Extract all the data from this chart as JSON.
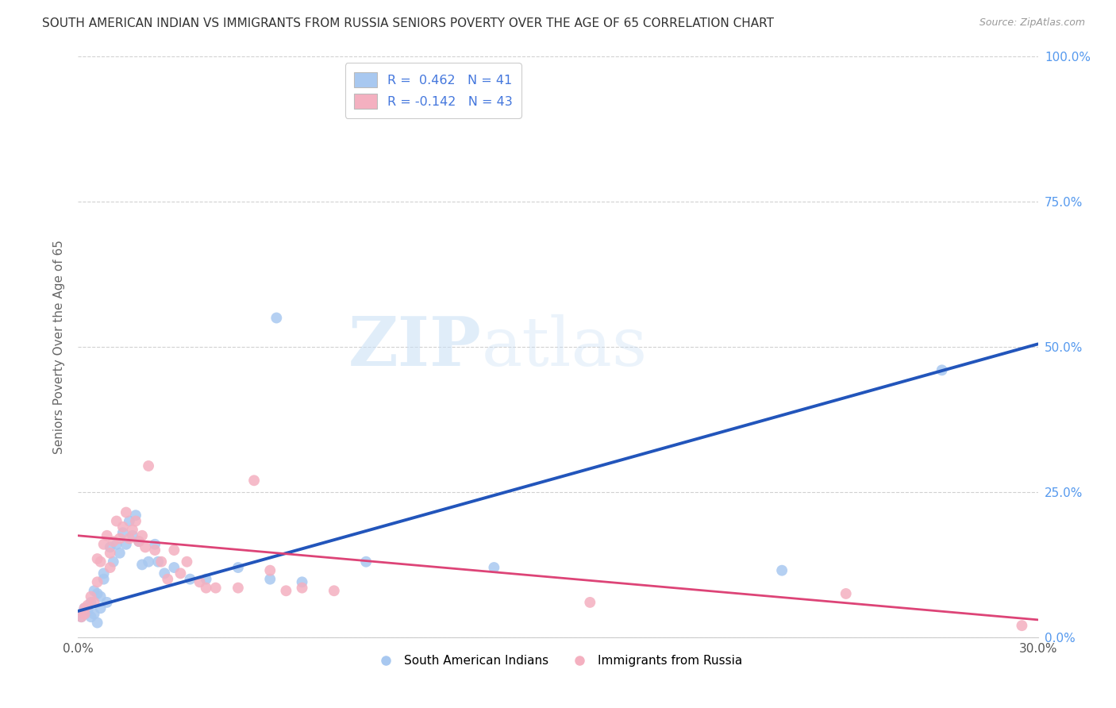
{
  "title": "SOUTH AMERICAN INDIAN VS IMMIGRANTS FROM RUSSIA SENIORS POVERTY OVER THE AGE OF 65 CORRELATION CHART",
  "source": "Source: ZipAtlas.com",
  "ylabel": "Seniors Poverty Over the Age of 65",
  "xlim": [
    0.0,
    0.3
  ],
  "ylim": [
    0.0,
    1.0
  ],
  "xticks": [
    0.0,
    0.05,
    0.1,
    0.15,
    0.2,
    0.25,
    0.3
  ],
  "yticks": [
    0.0,
    0.25,
    0.5,
    0.75,
    1.0
  ],
  "R_blue": 0.462,
  "N_blue": 41,
  "R_pink": -0.142,
  "N_pink": 43,
  "legend_label_blue": "South American Indians",
  "legend_label_pink": "Immigrants from Russia",
  "watermark_zip": "ZIP",
  "watermark_atlas": "atlas",
  "blue_scatter": [
    [
      0.001,
      0.035
    ],
    [
      0.002,
      0.05
    ],
    [
      0.002,
      0.04
    ],
    [
      0.003,
      0.045
    ],
    [
      0.004,
      0.06
    ],
    [
      0.004,
      0.035
    ],
    [
      0.005,
      0.04
    ],
    [
      0.005,
      0.08
    ],
    [
      0.006,
      0.075
    ],
    [
      0.006,
      0.025
    ],
    [
      0.007,
      0.05
    ],
    [
      0.007,
      0.07
    ],
    [
      0.008,
      0.1
    ],
    [
      0.008,
      0.11
    ],
    [
      0.009,
      0.06
    ],
    [
      0.01,
      0.155
    ],
    [
      0.011,
      0.13
    ],
    [
      0.012,
      0.16
    ],
    [
      0.013,
      0.145
    ],
    [
      0.014,
      0.18
    ],
    [
      0.015,
      0.16
    ],
    [
      0.016,
      0.2
    ],
    [
      0.017,
      0.175
    ],
    [
      0.018,
      0.21
    ],
    [
      0.019,
      0.165
    ],
    [
      0.02,
      0.125
    ],
    [
      0.022,
      0.13
    ],
    [
      0.024,
      0.16
    ],
    [
      0.025,
      0.13
    ],
    [
      0.027,
      0.11
    ],
    [
      0.03,
      0.12
    ],
    [
      0.035,
      0.1
    ],
    [
      0.04,
      0.1
    ],
    [
      0.05,
      0.12
    ],
    [
      0.06,
      0.1
    ],
    [
      0.062,
      0.55
    ],
    [
      0.07,
      0.095
    ],
    [
      0.09,
      0.13
    ],
    [
      0.13,
      0.12
    ],
    [
      0.22,
      0.115
    ],
    [
      0.27,
      0.46
    ]
  ],
  "pink_scatter": [
    [
      0.001,
      0.035
    ],
    [
      0.002,
      0.05
    ],
    [
      0.002,
      0.04
    ],
    [
      0.003,
      0.055
    ],
    [
      0.004,
      0.07
    ],
    [
      0.005,
      0.06
    ],
    [
      0.006,
      0.095
    ],
    [
      0.006,
      0.135
    ],
    [
      0.007,
      0.13
    ],
    [
      0.008,
      0.16
    ],
    [
      0.009,
      0.175
    ],
    [
      0.01,
      0.145
    ],
    [
      0.01,
      0.12
    ],
    [
      0.011,
      0.165
    ],
    [
      0.012,
      0.2
    ],
    [
      0.013,
      0.17
    ],
    [
      0.014,
      0.19
    ],
    [
      0.015,
      0.215
    ],
    [
      0.016,
      0.17
    ],
    [
      0.017,
      0.185
    ],
    [
      0.018,
      0.2
    ],
    [
      0.019,
      0.165
    ],
    [
      0.02,
      0.175
    ],
    [
      0.021,
      0.155
    ],
    [
      0.022,
      0.295
    ],
    [
      0.024,
      0.15
    ],
    [
      0.026,
      0.13
    ],
    [
      0.028,
      0.1
    ],
    [
      0.03,
      0.15
    ],
    [
      0.032,
      0.11
    ],
    [
      0.034,
      0.13
    ],
    [
      0.038,
      0.095
    ],
    [
      0.04,
      0.085
    ],
    [
      0.043,
      0.085
    ],
    [
      0.05,
      0.085
    ],
    [
      0.055,
      0.27
    ],
    [
      0.06,
      0.115
    ],
    [
      0.065,
      0.08
    ],
    [
      0.07,
      0.085
    ],
    [
      0.08,
      0.08
    ],
    [
      0.16,
      0.06
    ],
    [
      0.24,
      0.075
    ],
    [
      0.295,
      0.02
    ]
  ],
  "blue_line_x": [
    0.0,
    0.3
  ],
  "blue_line_y": [
    0.045,
    0.505
  ],
  "pink_line_x": [
    0.0,
    0.3
  ],
  "pink_line_y": [
    0.175,
    0.03
  ],
  "scatter_size": 100,
  "blue_color": "#a8c8f0",
  "pink_color": "#f4b0c0",
  "blue_scatter_edge": "#a8c8f0",
  "pink_scatter_edge": "#f4b0c0",
  "blue_line_color": "#2255bb",
  "pink_line_color": "#dd4477",
  "grid_color": "#cccccc",
  "background_color": "#ffffff",
  "title_color": "#333333",
  "axis_label_color": "#666666",
  "right_tick_color": "#5599ee",
  "legend_R_color": "#4477dd"
}
